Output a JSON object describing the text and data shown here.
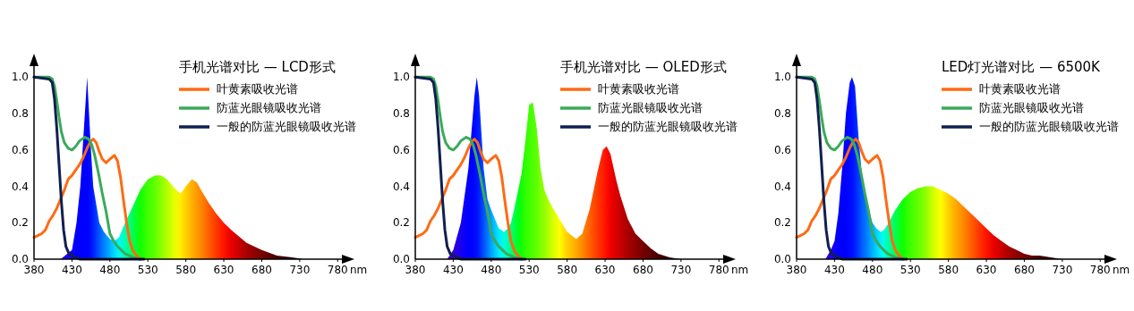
{
  "chart_data": [
    {
      "type": "line",
      "title": "手机光谱对比 — LCD形式",
      "xlabel": "nm",
      "xlim": [
        380,
        795
      ],
      "ylim": [
        0,
        1.1
      ],
      "xticks": [
        380,
        430,
        480,
        530,
        580,
        630,
        680,
        730,
        780
      ],
      "yticks": [
        {
          "value": 0,
          "label": "0.0"
        },
        {
          "value": 0.2,
          "label": "0.2"
        },
        {
          "value": 0.4,
          "label": "0.4"
        },
        {
          "value": 0.6,
          "label": "0.6"
        },
        {
          "value": 0.8,
          "label": "0.8"
        },
        {
          "value": 1,
          "label": "1.0"
        }
      ],
      "legend": "top right",
      "series": [
        {
          "type": "area",
          "x": [
            415,
            430,
            436,
            441,
            444,
            450,
            455,
            458,
            466,
            472,
            480,
            486,
            492,
            500,
            510,
            520,
            530,
            540,
            547,
            555,
            565,
            573,
            580,
            588,
            595,
            600,
            610,
            620,
            630,
            640,
            660,
            680,
            700,
            720,
            735
          ],
          "values": [
            0,
            0.05,
            0.2,
            0.4,
            0.6,
            1.0,
            0.6,
            0.4,
            0.2,
            0.15,
            0.11,
            0.1,
            0.12,
            0.2,
            0.29,
            0.38,
            0.44,
            0.46,
            0.46,
            0.44,
            0.39,
            0.36,
            0.4,
            0.44,
            0.42,
            0.38,
            0.31,
            0.25,
            0.2,
            0.16,
            0.09,
            0.05,
            0.02,
            0.01,
            0
          ],
          "colors": [
            "#3000e0",
            "#1000ff",
            "#0000ff",
            "#0000ff",
            "#0000ff",
            "#0000ff",
            "#0010ff",
            "#0020ff",
            "#0058ff",
            "#0080ff",
            "#00b0ff",
            "#00d8ff",
            "#00f8f8",
            "#00ffb0",
            "#00ff50",
            "#10ff00",
            "#40ff00",
            "#60ff00",
            "#88ff00",
            "#b0ff00",
            "#e8ff00",
            "#ffee00",
            "#ffd000",
            "#ffb000",
            "#ff9800",
            "#ff8800",
            "#ff6000",
            "#ff3800",
            "#ff1400",
            "#e80000",
            "#a80000",
            "#780000",
            "#480000",
            "#280000",
            "#1c0000"
          ]
        },
        {
          "name": "叶黄素吸收光谱",
          "color": "#ff6a13",
          "x": [
            380,
            385,
            390,
            395,
            400,
            405,
            410,
            415,
            420,
            425,
            430,
            435,
            440,
            445,
            450,
            455,
            458,
            462,
            466,
            470,
            475,
            480,
            486,
            490,
            494,
            498,
            502,
            506,
            510,
            515,
            520
          ],
          "values": [
            0.12,
            0.13,
            0.14,
            0.16,
            0.21,
            0.24,
            0.28,
            0.33,
            0.38,
            0.44,
            0.46,
            0.49,
            0.52,
            0.56,
            0.61,
            0.65,
            0.66,
            0.64,
            0.59,
            0.55,
            0.53,
            0.55,
            0.57,
            0.54,
            0.45,
            0.32,
            0.2,
            0.1,
            0.05,
            0.02,
            0.0
          ]
        },
        {
          "name": "防蓝光眼镜吸收光谱",
          "color": "#3aaa5a",
          "x": [
            380,
            400,
            404,
            407,
            410,
            413,
            416,
            420,
            425,
            430,
            435,
            440,
            447,
            452,
            456,
            460,
            465,
            470,
            475,
            480,
            485,
            490,
            495,
            500,
            510,
            520
          ],
          "values": [
            1.0,
            1.0,
            0.99,
            0.95,
            0.87,
            0.78,
            0.7,
            0.64,
            0.61,
            0.6,
            0.62,
            0.65,
            0.67,
            0.66,
            0.63,
            0.57,
            0.47,
            0.36,
            0.26,
            0.14,
            0.1,
            0.07,
            0.05,
            0.03,
            0.01,
            0.0
          ]
        },
        {
          "name": "一般的防蓝光眼镜吸收光谱",
          "color": "#10204f",
          "x": [
            380,
            400,
            404,
            407,
            410,
            413,
            416,
            419,
            422,
            426,
            430,
            435,
            440,
            450,
            525
          ],
          "values": [
            1.0,
            0.99,
            0.97,
            0.88,
            0.72,
            0.52,
            0.32,
            0.16,
            0.07,
            0.03,
            0.02,
            0.01,
            0.0,
            0.0,
            0.0
          ]
        }
      ]
    },
    {
      "type": "line",
      "title": "手机光谱对比 — OLED形式",
      "xlabel": "nm",
      "xlim": [
        380,
        795
      ],
      "ylim": [
        0,
        1.1
      ],
      "xticks": [
        380,
        430,
        480,
        530,
        580,
        630,
        680,
        730,
        780
      ],
      "yticks": [
        {
          "value": 0,
          "label": "0.0"
        },
        {
          "value": 0.2,
          "label": "0.2"
        },
        {
          "value": 0.4,
          "label": "0.4"
        },
        {
          "value": 0.6,
          "label": "0.6"
        },
        {
          "value": 0.8,
          "label": "0.8"
        },
        {
          "value": 1,
          "label": "1.0"
        }
      ],
      "legend": "top right",
      "series": [
        {
          "type": "area",
          "x": [
            422,
            430,
            440,
            450,
            455,
            458,
            461,
            464,
            467,
            470,
            475,
            480,
            485,
            490,
            497,
            502,
            506,
            510,
            515,
            520,
            525,
            530,
            535,
            540,
            545,
            550,
            555,
            560,
            570,
            580,
            592,
            600,
            610,
            620,
            627,
            632,
            637,
            645,
            650,
            660,
            670,
            680,
            690,
            700,
            715,
            730
          ],
          "values": [
            0,
            0.05,
            0.2,
            0.5,
            0.75,
            0.9,
            1.0,
            0.9,
            0.7,
            0.5,
            0.33,
            0.27,
            0.22,
            0.17,
            0.15,
            0.17,
            0.2,
            0.27,
            0.37,
            0.47,
            0.65,
            0.85,
            0.86,
            0.72,
            0.5,
            0.38,
            0.33,
            0.29,
            0.22,
            0.15,
            0.11,
            0.14,
            0.28,
            0.48,
            0.6,
            0.62,
            0.58,
            0.43,
            0.35,
            0.22,
            0.14,
            0.1,
            0.06,
            0.03,
            0.01,
            0
          ],
          "colors": [
            "#4000b0",
            "#3000d8",
            "#1800f0",
            "#0000ff",
            "#0000ff",
            "#0008ff",
            "#0010ff",
            "#0020ff",
            "#0038ff",
            "#0050ff",
            "#0078ff",
            "#00a0ff",
            "#00c8ff",
            "#00e8ff",
            "#00ffe0",
            "#00ffb0",
            "#00ff80",
            "#00ff50",
            "#00ff20",
            "#10ff00",
            "#30ff00",
            "#40ff00",
            "#50ff00",
            "#60ff00",
            "#80ff00",
            "#90ff00",
            "#b0ff00",
            "#d0ff00",
            "#ffff00",
            "#ffd000",
            "#ffa800",
            "#ff8800",
            "#ff6000",
            "#ff3800",
            "#ff2000",
            "#ff0c00",
            "#f00000",
            "#d80000",
            "#c80000",
            "#a80000",
            "#900000",
            "#780000",
            "#600000",
            "#480000",
            "#300000",
            "#200000"
          ]
        },
        {
          "name": "叶黄素吸收光谱",
          "color": "#ff6a13",
          "x": [
            380,
            385,
            390,
            395,
            400,
            405,
            410,
            415,
            420,
            425,
            430,
            435,
            440,
            445,
            450,
            455,
            458,
            462,
            466,
            470,
            475,
            480,
            486,
            490,
            494,
            498,
            502,
            506,
            510,
            515,
            520
          ],
          "values": [
            0.12,
            0.13,
            0.14,
            0.16,
            0.21,
            0.24,
            0.28,
            0.33,
            0.38,
            0.44,
            0.46,
            0.49,
            0.52,
            0.56,
            0.61,
            0.65,
            0.66,
            0.64,
            0.59,
            0.55,
            0.53,
            0.55,
            0.57,
            0.54,
            0.45,
            0.32,
            0.2,
            0.1,
            0.05,
            0.02,
            0.0
          ]
        },
        {
          "name": "防蓝光眼镜吸收光谱",
          "color": "#3aaa5a",
          "x": [
            380,
            400,
            404,
            407,
            410,
            413,
            416,
            420,
            425,
            430,
            435,
            440,
            447,
            452,
            456,
            460,
            465,
            470,
            475,
            480,
            485,
            490,
            495,
            500,
            510,
            520
          ],
          "values": [
            1.0,
            1.0,
            0.99,
            0.95,
            0.87,
            0.78,
            0.7,
            0.64,
            0.61,
            0.6,
            0.62,
            0.65,
            0.67,
            0.66,
            0.63,
            0.57,
            0.47,
            0.36,
            0.26,
            0.14,
            0.1,
            0.07,
            0.05,
            0.03,
            0.01,
            0.0
          ]
        },
        {
          "name": "一般的防蓝光眼镜吸收光谱",
          "color": "#10204f",
          "x": [
            380,
            400,
            404,
            407,
            410,
            413,
            416,
            419,
            422,
            426,
            430,
            435,
            440,
            450,
            525
          ],
          "values": [
            1.0,
            0.99,
            0.97,
            0.88,
            0.72,
            0.52,
            0.32,
            0.16,
            0.07,
            0.03,
            0.02,
            0.01,
            0.0,
            0.0,
            0.0
          ]
        }
      ]
    },
    {
      "type": "line",
      "title": "LED灯光谱对比 — 6500K",
      "xlabel": "nm",
      "xlim": [
        380,
        795
      ],
      "ylim": [
        0,
        1.1
      ],
      "xticks": [
        380,
        430,
        480,
        530,
        580,
        630,
        680,
        730,
        780
      ],
      "yticks": [
        {
          "value": 0,
          "label": "0.0"
        },
        {
          "value": 0.2,
          "label": "0.2"
        },
        {
          "value": 0.4,
          "label": "0.4"
        },
        {
          "value": 0.6,
          "label": "0.6"
        },
        {
          "value": 0.8,
          "label": "0.8"
        },
        {
          "value": 1,
          "label": "1.0"
        }
      ],
      "legend": "top right",
      "series": [
        {
          "type": "area",
          "x": [
            418,
            425,
            430,
            435,
            440,
            445,
            450,
            453,
            457,
            462,
            467,
            470,
            475,
            480,
            485,
            491,
            495,
            500,
            510,
            520,
            530,
            540,
            550,
            560,
            570,
            580,
            590,
            600,
            610,
            620,
            630,
            640,
            650,
            660,
            670,
            680,
            690,
            700,
            715,
            730
          ],
          "values": [
            0,
            0.05,
            0.1,
            0.25,
            0.5,
            0.8,
            0.97,
            1.0,
            0.95,
            0.65,
            0.42,
            0.35,
            0.27,
            0.2,
            0.17,
            0.15,
            0.16,
            0.19,
            0.27,
            0.33,
            0.37,
            0.39,
            0.4,
            0.4,
            0.38,
            0.36,
            0.33,
            0.29,
            0.25,
            0.21,
            0.17,
            0.13,
            0.1,
            0.07,
            0.05,
            0.03,
            0.02,
            0.02,
            0.01,
            0
          ],
          "colors": [
            "#3800d0",
            "#2800e8",
            "#1000ff",
            "#0000ff",
            "#0000ff",
            "#0000ff",
            "#0008ff",
            "#0010ff",
            "#0020ff",
            "#0040ff",
            "#0060ff",
            "#0070ff",
            "#0090ff",
            "#00b0ff",
            "#00d0ff",
            "#00f0ff",
            "#00ffe0",
            "#00ffb0",
            "#00ff50",
            "#10ff00",
            "#40ff00",
            "#60ff00",
            "#90ff00",
            "#d0ff00",
            "#ffff00",
            "#ffd000",
            "#ffa800",
            "#ff8800",
            "#ff6000",
            "#ff3800",
            "#ff1400",
            "#e80000",
            "#c80000",
            "#a80000",
            "#900000",
            "#780000",
            "#600000",
            "#480000",
            "#300000",
            "#200000"
          ]
        },
        {
          "name": "叶黄素吸收光谱",
          "color": "#ff6a13",
          "x": [
            380,
            385,
            390,
            395,
            400,
            405,
            410,
            415,
            420,
            425,
            430,
            435,
            440,
            445,
            450,
            455,
            458,
            462,
            466,
            470,
            475,
            480,
            486,
            490,
            494,
            498,
            502,
            506,
            510,
            515,
            520
          ],
          "values": [
            0.12,
            0.13,
            0.14,
            0.16,
            0.21,
            0.24,
            0.28,
            0.33,
            0.38,
            0.44,
            0.46,
            0.49,
            0.52,
            0.56,
            0.61,
            0.65,
            0.66,
            0.64,
            0.59,
            0.55,
            0.53,
            0.55,
            0.57,
            0.54,
            0.45,
            0.32,
            0.2,
            0.1,
            0.05,
            0.02,
            0.0
          ]
        },
        {
          "name": "防蓝光眼镜吸收光谱",
          "color": "#3aaa5a",
          "x": [
            380,
            400,
            404,
            407,
            410,
            413,
            416,
            420,
            425,
            430,
            435,
            440,
            447,
            452,
            456,
            460,
            465,
            470,
            475,
            480,
            485,
            490,
            495,
            500,
            510,
            520
          ],
          "values": [
            1.0,
            1.0,
            0.99,
            0.95,
            0.87,
            0.78,
            0.7,
            0.64,
            0.61,
            0.6,
            0.62,
            0.65,
            0.67,
            0.66,
            0.63,
            0.57,
            0.47,
            0.36,
            0.26,
            0.14,
            0.1,
            0.07,
            0.05,
            0.03,
            0.01,
            0.0
          ]
        },
        {
          "name": "一般的防蓝光眼镜吸收光谱",
          "color": "#10204f",
          "x": [
            380,
            400,
            404,
            407,
            410,
            413,
            416,
            419,
            422,
            426,
            430,
            435,
            440,
            450,
            525
          ],
          "values": [
            1.0,
            0.99,
            0.97,
            0.88,
            0.72,
            0.52,
            0.32,
            0.16,
            0.07,
            0.03,
            0.02,
            0.01,
            0.0,
            0.0,
            0.0
          ]
        }
      ]
    }
  ]
}
